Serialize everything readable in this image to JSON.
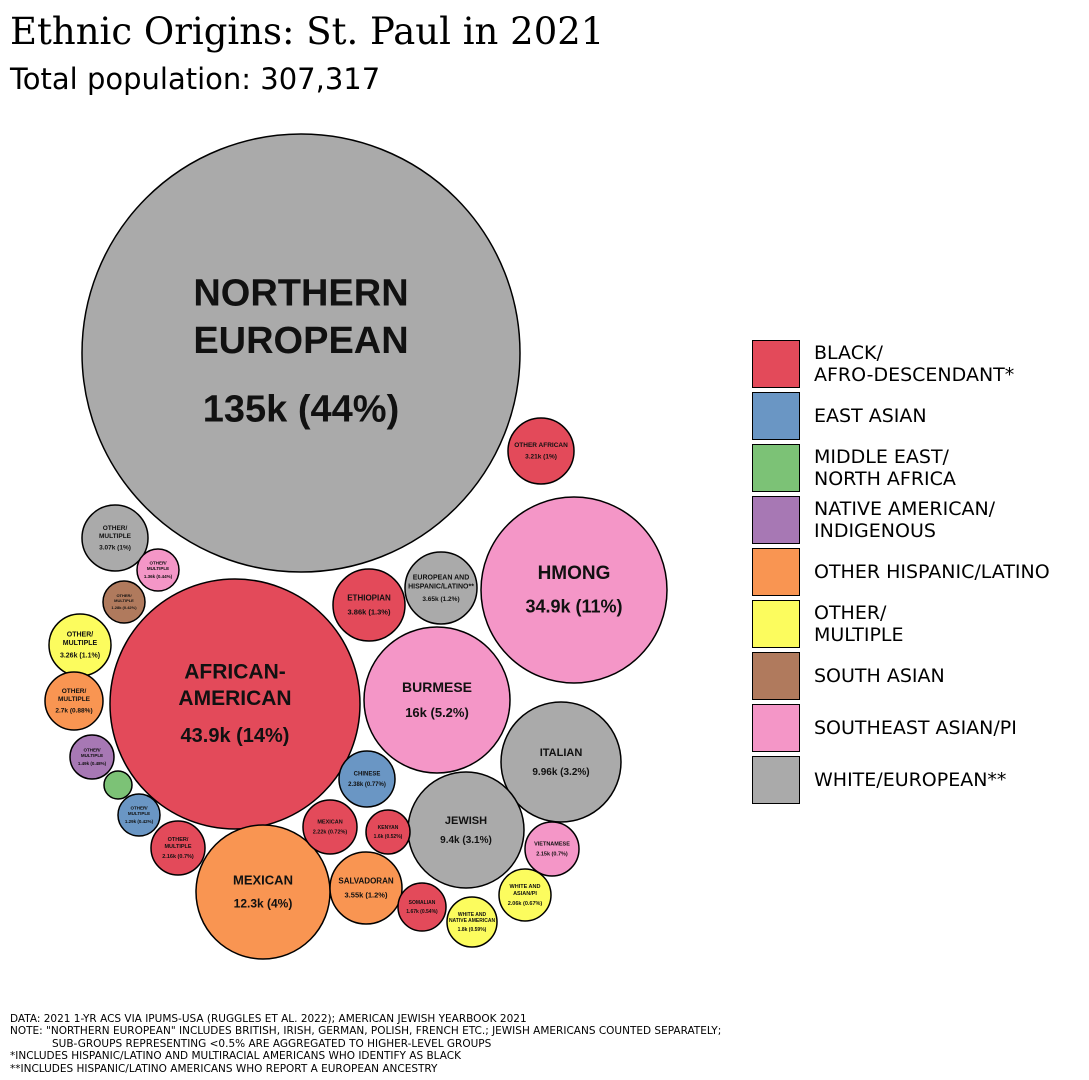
{
  "title": "Ethnic Origins: St. Paul in 2021",
  "subtitle": "Total population: 307,317",
  "legend": [
    {
      "label": "BLACK/\nAFRO-DESCENDANT*",
      "color": "#e34a5a"
    },
    {
      "label": "EAST ASIAN",
      "color": "#6a96c4"
    },
    {
      "label": "MIDDLE EAST/\nNORTH AFRICA",
      "color": "#7cc276"
    },
    {
      "label": "NATIVE AMERICAN/\nINDIGENOUS",
      "color": "#a778b4"
    },
    {
      "label": "OTHER HISPANIC/LATINO",
      "color": "#f99552"
    },
    {
      "label": "OTHER/\nMULTIPLE",
      "color": "#fcfc5e"
    },
    {
      "label": "SOUTH ASIAN",
      "color": "#b07a5d"
    },
    {
      "label": "SOUTHEAST ASIAN/PI",
      "color": "#f496c7"
    },
    {
      "label": "WHITE/EUROPEAN**",
      "color": "#aaaaaa"
    }
  ],
  "chart_data": {
    "type": "bubble",
    "title": "Ethnic Origins: St. Paul in 2021",
    "subtitle": "Total population: 307,317",
    "total_population": 307317,
    "groups": [
      {
        "name": "NORTHERN EUROPEAN",
        "value_label": "135k (44%)",
        "value": 135000,
        "percent": 44,
        "category": "WHITE/EUROPEAN**"
      },
      {
        "name": "AFRICAN-AMERICAN",
        "value_label": "43.9k (14%)",
        "value": 43900,
        "percent": 14,
        "category": "BLACK/AFRO-DESCENDANT*"
      },
      {
        "name": "HMONG",
        "value_label": "34.9k (11%)",
        "value": 34900,
        "percent": 11,
        "category": "SOUTHEAST ASIAN/PI"
      },
      {
        "name": "BURMESE",
        "value_label": "16k (5.2%)",
        "value": 16000,
        "percent": 5.2,
        "category": "SOUTHEAST ASIAN/PI"
      },
      {
        "name": "MEXICAN",
        "value_label": "12.3k (4%)",
        "value": 12300,
        "percent": 4,
        "category": "OTHER HISPANIC/LATINO"
      },
      {
        "name": "ITALIAN",
        "value_label": "9.96k (3.2%)",
        "value": 9960,
        "percent": 3.2,
        "category": "WHITE/EUROPEAN**"
      },
      {
        "name": "JEWISH",
        "value_label": "9.4k (3.1%)",
        "value": 9400,
        "percent": 3.1,
        "category": "WHITE/EUROPEAN**"
      },
      {
        "name": "ETHIOPIAN",
        "value_label": "3.86k (1.3%)",
        "value": 3860,
        "percent": 1.3,
        "category": "BLACK/AFRO-DESCENDANT*"
      },
      {
        "name": "EUROPEAN AND HISPANIC/LATINO**",
        "value_label": "3.65k (1.2%)",
        "value": 3650,
        "percent": 1.2,
        "category": "WHITE/EUROPEAN**"
      },
      {
        "name": "SALVADORAN",
        "value_label": "3.55k (1.2%)",
        "value": 3550,
        "percent": 1.2,
        "category": "OTHER HISPANIC/LATINO"
      },
      {
        "name": "OTHER/MULTIPLE",
        "value_label": "3.26k (1.1%)",
        "value": 3260,
        "percent": 1.1,
        "category": "OTHER/MULTIPLE"
      },
      {
        "name": "OTHER AFRICAN",
        "value_label": "3.21k (1%)",
        "value": 3210,
        "percent": 1,
        "category": "BLACK/AFRO-DESCENDANT*"
      },
      {
        "name": "OTHER/MULTIPLE",
        "value_label": "3.07k (1%)",
        "value": 3070,
        "percent": 1,
        "category": "WHITE/EUROPEAN**"
      },
      {
        "name": "OTHER/MULTIPLE",
        "value_label": "2.7k (0.88%)",
        "value": 2700,
        "percent": 0.88,
        "category": "OTHER HISPANIC/LATINO"
      },
      {
        "name": "CHINESE",
        "value_label": "2.38k (0.77%)",
        "value": 2380,
        "percent": 0.77,
        "category": "EAST ASIAN"
      },
      {
        "name": "MEXICAN",
        "value_label": "2.22k (0.72%)",
        "value": 2220,
        "percent": 0.72,
        "category": "BLACK/AFRO-DESCENDANT*"
      },
      {
        "name": "OTHER/MULTIPLE",
        "value_label": "2.16k (0.7%)",
        "value": 2160,
        "percent": 0.7,
        "category": "BLACK/AFRO-DESCENDANT*"
      },
      {
        "name": "VIETNAMESE",
        "value_label": "2.15k (0.7%)",
        "value": 2150,
        "percent": 0.7,
        "category": "SOUTHEAST ASIAN/PI"
      },
      {
        "name": "WHITE AND ASIAN/PI",
        "value_label": "2.06k (0.67%)",
        "value": 2060,
        "percent": 0.67,
        "category": "OTHER/MULTIPLE"
      },
      {
        "name": "WHITE AND NATIVE AMERICAN",
        "value_label": "1.8k (0.59%)",
        "value": 1800,
        "percent": 0.59,
        "category": "OTHER/MULTIPLE"
      },
      {
        "name": "SOMALIAN",
        "value_label": "1.67k (0.54%)",
        "value": 1670,
        "percent": 0.54,
        "category": "BLACK/AFRO-DESCENDANT*"
      },
      {
        "name": "KENYAN",
        "value_label": "1.6k (0.52%)",
        "value": 1600,
        "percent": 0.52,
        "category": "BLACK/AFRO-DESCENDANT*"
      },
      {
        "name": "OTHER/MULTIPLE",
        "value_label": "1.49k (0.48%)",
        "value": 1490,
        "percent": 0.48,
        "category": "NATIVE AMERICAN/INDIGENOUS"
      },
      {
        "name": "OTHER/MULTIPLE",
        "value_label": "1.36k (0.44%)",
        "value": 1360,
        "percent": 0.44,
        "category": "SOUTHEAST ASIAN/PI"
      },
      {
        "name": "OTHER/MULTIPLE",
        "value_label": "1.29k (0.42%)",
        "value": 1290,
        "percent": 0.42,
        "category": "EAST ASIAN"
      },
      {
        "name": "OTHER/MULTIPLE",
        "value_label": "1.28k (0.42%)",
        "value": 1280,
        "percent": 0.42,
        "category": "SOUTH ASIAN"
      },
      {
        "name": "",
        "value_label": "",
        "value": null,
        "percent": null,
        "category": "MIDDLE EAST/NORTH AFRICA"
      }
    ]
  },
  "notes": [
    "DATA: 2021 1-YR ACS VIA IPUMS-USA (RUGGLES ET AL. 2022); AMERICAN JEWISH YEARBOOK 2021",
    "NOTE: \"NORTHERN EUROPEAN\" INCLUDES BRITISH, IRISH, GERMAN, POLISH, FRENCH ETC.; JEWISH AMERICANS COUNTED SEPARATELY;",
    "SUB-GROUPS REPRESENTING <0.5% ARE AGGREGATED TO HIGHER-LEVEL GROUPS",
    "*INCLUDES HISPANIC/LATINO AND MULTIRACIAL AMERICANS WHO IDENTIFY AS BLACK",
    "**INCLUDES HISPANIC/LATINO AMERICANS WHO REPORT A EUROPEAN ANCESTRY"
  ]
}
